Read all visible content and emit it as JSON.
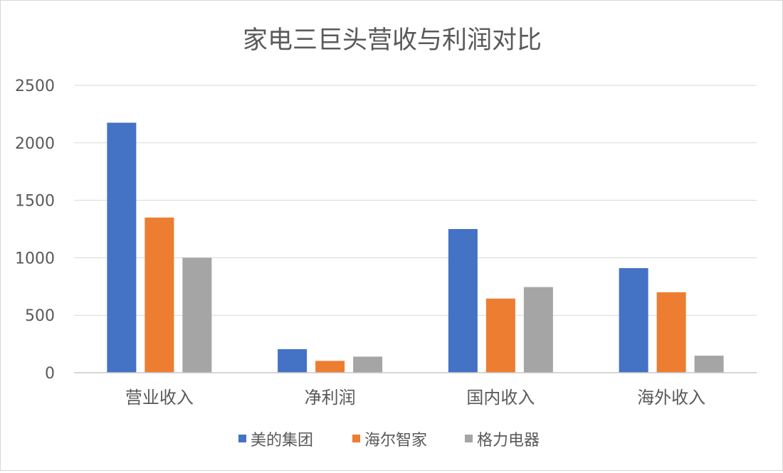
{
  "chart_data": {
    "type": "bar",
    "title": "家电三巨头营收与利润对比",
    "categories": [
      "营业收入",
      "净利润",
      "国内收入",
      "海外收入"
    ],
    "series": [
      {
        "name": "美的集团",
        "color": "#4472C4",
        "values": [
          2175,
          205,
          1250,
          910
        ]
      },
      {
        "name": "海尔智家",
        "color": "#ED7D31",
        "values": [
          1350,
          103,
          645,
          700
        ]
      },
      {
        "name": "格力电器",
        "color": "#A5A5A5",
        "values": [
          1000,
          140,
          745,
          148
        ]
      }
    ],
    "ylim": [
      0,
      2500
    ],
    "yticks": [
      "0",
      "500",
      "1000",
      "1500",
      "2000",
      "2500"
    ],
    "grid": true,
    "legend_position": "bottom"
  }
}
